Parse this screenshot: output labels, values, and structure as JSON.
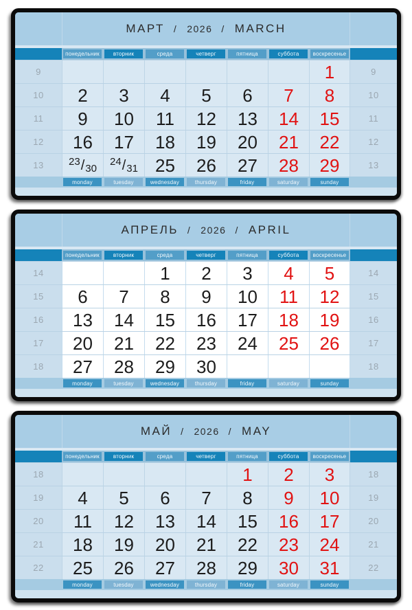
{
  "colors": {
    "weekend_red": "#e11212",
    "date_black": "#1c1c1c",
    "panel_blue": "#a8cde5",
    "cell_blue": "#d9e8f3",
    "highlight_cell_white": "#ffffff",
    "band_dark_blue": "#1583b9",
    "band_medium_blue": "#539ec8",
    "band_bottom_dark": "#3b93c2",
    "band_bottom_light": "#7fb3d4",
    "week_number_gray": "#9ba7b1"
  },
  "split_separator": "/",
  "day_names_ru": [
    "понедельник",
    "вторник",
    "среда",
    "четверг",
    "пятница",
    "суббота",
    "воскресенье"
  ],
  "day_names_en": [
    "monday",
    "tuesday",
    "wednesday",
    "thursday",
    "friday",
    "saturday",
    "sunday"
  ],
  "months": [
    {
      "name_ru": "МАРТ",
      "year": "2026",
      "name_en": "MARCH",
      "separator": "/",
      "highlight": false,
      "week_numbers": [
        "9",
        "10",
        "11",
        "12",
        "13"
      ],
      "weeks": [
        [
          null,
          null,
          null,
          null,
          null,
          null,
          {
            "n": "1",
            "red": true
          }
        ],
        [
          {
            "n": "2"
          },
          {
            "n": "3"
          },
          {
            "n": "4"
          },
          {
            "n": "5"
          },
          {
            "n": "6"
          },
          {
            "n": "7",
            "red": true
          },
          {
            "n": "8",
            "red": true
          }
        ],
        [
          {
            "n": "9"
          },
          {
            "n": "10"
          },
          {
            "n": "11"
          },
          {
            "n": "12"
          },
          {
            "n": "13"
          },
          {
            "n": "14",
            "red": true
          },
          {
            "n": "15",
            "red": true
          }
        ],
        [
          {
            "n": "16"
          },
          {
            "n": "17"
          },
          {
            "n": "18"
          },
          {
            "n": "19"
          },
          {
            "n": "20"
          },
          {
            "n": "21",
            "red": true
          },
          {
            "n": "22",
            "red": true
          }
        ],
        [
          {
            "split": [
              "23",
              "30"
            ]
          },
          {
            "split": [
              "24",
              "31"
            ]
          },
          {
            "n": "25"
          },
          {
            "n": "26"
          },
          {
            "n": "27"
          },
          {
            "n": "28",
            "red": true
          },
          {
            "n": "29",
            "red": true
          }
        ]
      ]
    },
    {
      "name_ru": "АПРЕЛЬ",
      "year": "2026",
      "name_en": "APRIL",
      "separator": "/",
      "highlight": true,
      "week_numbers": [
        "14",
        "15",
        "16",
        "17",
        "18"
      ],
      "weeks": [
        [
          null,
          null,
          {
            "n": "1"
          },
          {
            "n": "2"
          },
          {
            "n": "3"
          },
          {
            "n": "4",
            "red": true
          },
          {
            "n": "5",
            "red": true
          }
        ],
        [
          {
            "n": "6"
          },
          {
            "n": "7"
          },
          {
            "n": "8"
          },
          {
            "n": "9"
          },
          {
            "n": "10"
          },
          {
            "n": "11",
            "red": true
          },
          {
            "n": "12",
            "red": true
          }
        ],
        [
          {
            "n": "13"
          },
          {
            "n": "14"
          },
          {
            "n": "15"
          },
          {
            "n": "16"
          },
          {
            "n": "17"
          },
          {
            "n": "18",
            "red": true
          },
          {
            "n": "19",
            "red": true
          }
        ],
        [
          {
            "n": "20"
          },
          {
            "n": "21"
          },
          {
            "n": "22"
          },
          {
            "n": "23"
          },
          {
            "n": "24"
          },
          {
            "n": "25",
            "red": true
          },
          {
            "n": "26",
            "red": true
          }
        ],
        [
          {
            "n": "27"
          },
          {
            "n": "28"
          },
          {
            "n": "29"
          },
          {
            "n": "30"
          },
          null,
          null,
          null
        ]
      ]
    },
    {
      "name_ru": "МАЙ",
      "year": "2026",
      "name_en": "MAY",
      "separator": "/",
      "highlight": false,
      "week_numbers": [
        "18",
        "19",
        "20",
        "21",
        "22"
      ],
      "weeks": [
        [
          null,
          null,
          null,
          null,
          {
            "n": "1",
            "red": true
          },
          {
            "n": "2",
            "red": true
          },
          {
            "n": "3",
            "red": true
          }
        ],
        [
          {
            "n": "4"
          },
          {
            "n": "5"
          },
          {
            "n": "6"
          },
          {
            "n": "7"
          },
          {
            "n": "8"
          },
          {
            "n": "9",
            "red": true
          },
          {
            "n": "10",
            "red": true
          }
        ],
        [
          {
            "n": "11"
          },
          {
            "n": "12"
          },
          {
            "n": "13"
          },
          {
            "n": "14"
          },
          {
            "n": "15"
          },
          {
            "n": "16",
            "red": true
          },
          {
            "n": "17",
            "red": true
          }
        ],
        [
          {
            "n": "18"
          },
          {
            "n": "19"
          },
          {
            "n": "20"
          },
          {
            "n": "21"
          },
          {
            "n": "22"
          },
          {
            "n": "23",
            "red": true
          },
          {
            "n": "24",
            "red": true
          }
        ],
        [
          {
            "n": "25"
          },
          {
            "n": "26"
          },
          {
            "n": "27"
          },
          {
            "n": "28"
          },
          {
            "n": "29"
          },
          {
            "n": "30",
            "red": true
          },
          {
            "n": "31",
            "red": true
          }
        ]
      ]
    }
  ]
}
